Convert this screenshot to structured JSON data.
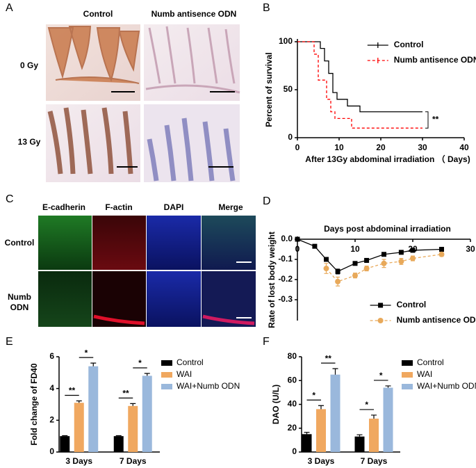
{
  "panel_labels": [
    "A",
    "B",
    "C",
    "D",
    "E",
    "F"
  ],
  "panel_a": {
    "columns": [
      "Control",
      "Numb antisence ODN"
    ],
    "rows": [
      "0 Gy",
      "13 Gy"
    ]
  },
  "panel_c": {
    "columns": [
      "E-cadherin",
      "F-actin",
      "DAPI",
      "Merge"
    ],
    "rows": [
      [
        "Control"
      ],
      [
        "Numb",
        "ODN"
      ]
    ]
  },
  "chart_data": [
    {
      "type": "line",
      "ylabel": "Percent of survival",
      "xlabel": "After 13Gy  abdominal irradiation （ Days)",
      "xlim": [
        0,
        40
      ],
      "xticks": [
        0,
        10,
        20,
        30,
        40
      ],
      "ylim": [
        0,
        100
      ],
      "yticks": [
        0,
        50,
        100
      ],
      "legend": "upper right",
      "annotation": "**",
      "series": [
        {
          "name": "Control",
          "color": "#000000",
          "linestyle": "solid",
          "x": [
            0,
            5.5,
            5.5,
            6.5,
            6.5,
            7.5,
            7.5,
            8.5,
            8.5,
            9.5,
            9.5,
            12,
            12,
            15,
            15,
            30
          ],
          "values": [
            100,
            100,
            93,
            93,
            80,
            80,
            67,
            67,
            47,
            47,
            40,
            40,
            33,
            33,
            27,
            27
          ]
        },
        {
          "name": "Numb antisence ODN",
          "color": "#ff0000",
          "linestyle": "dashed",
          "x": [
            0,
            4,
            4,
            5,
            5,
            7,
            7,
            8,
            8,
            9,
            9,
            13,
            13,
            30
          ],
          "values": [
            100,
            100,
            87,
            87,
            60,
            60,
            40,
            40,
            27,
            27,
            20,
            20,
            10,
            10
          ]
        }
      ]
    },
    {
      "type": "line",
      "title": "Days post abdominal irradiation",
      "ylabel": "Rate of lost body weight",
      "xlim": [
        0,
        30
      ],
      "xticks": [
        0,
        10,
        20,
        30
      ],
      "ylim": [
        -0.3,
        0
      ],
      "yticks": [
        {
          "value": 0,
          "label": "0.0"
        },
        -0.1,
        -0.2,
        -0.3
      ],
      "legend": "lower right",
      "x": [
        0,
        3,
        5,
        7,
        10,
        12,
        15,
        18,
        20,
        25
      ],
      "series": [
        {
          "name": "Control",
          "color": "#000000",
          "linestyle": "solid",
          "marker": "square",
          "values": [
            0,
            -0.035,
            -0.1,
            -0.16,
            -0.12,
            -0.105,
            -0.075,
            -0.065,
            -0.055,
            -0.05
          ],
          "errors": [
            0,
            0.005,
            0.01,
            0.012,
            0.008,
            0.01,
            0.006,
            0.006,
            0.006,
            0.008
          ]
        },
        {
          "name": "Numb antisence ODN",
          "color": "#e8a95a",
          "linestyle": "dashed",
          "marker": "circle",
          "values": [
            null,
            null,
            -0.145,
            -0.21,
            -0.18,
            -0.145,
            -0.12,
            -0.11,
            -0.095,
            -0.075
          ],
          "errors": [
            null,
            null,
            0.025,
            0.022,
            0.012,
            0.012,
            0.02,
            0.015,
            0.012,
            0.01
          ]
        }
      ]
    },
    {
      "type": "bar",
      "ylabel": "Fold change of FD40",
      "categories": [
        "3 Days",
        "7 Days"
      ],
      "ylim": [
        0,
        6
      ],
      "yticks": [
        0,
        2,
        4,
        6
      ],
      "legend": "right",
      "annotations": [
        "**",
        "*",
        "**",
        "*"
      ],
      "series": [
        {
          "name": "Control",
          "color": "#000000",
          "values": [
            1.0,
            1.0
          ],
          "errors": [
            0.03,
            0.03
          ]
        },
        {
          "name": "WAI",
          "color": "#f0a860",
          "values": [
            3.1,
            2.9
          ],
          "errors": [
            0.12,
            0.15
          ]
        },
        {
          "name": "WAI+Numb ODN",
          "color": "#9ab8dc",
          "values": [
            5.4,
            4.8
          ],
          "errors": [
            0.2,
            0.15
          ]
        }
      ]
    },
    {
      "type": "bar",
      "ylabel": "DAO (U/L)",
      "categories": [
        "3 Days",
        "7 Days"
      ],
      "ylim": [
        0,
        80
      ],
      "yticks": [
        0,
        20,
        40,
        60,
        80
      ],
      "legend": "right",
      "annotations": [
        "*",
        "**",
        "*",
        "*"
      ],
      "series": [
        {
          "name": "Control",
          "color": "#000000",
          "values": [
            15,
            13
          ],
          "errors": [
            1.5,
            1.5
          ]
        },
        {
          "name": "WAI",
          "color": "#f0a860",
          "values": [
            36,
            28
          ],
          "errors": [
            3,
            3
          ]
        },
        {
          "name": "WAI+Numb ODN",
          "color": "#9ab8dc",
          "values": [
            65,
            54
          ],
          "errors": [
            5,
            1.5
          ]
        }
      ]
    }
  ]
}
